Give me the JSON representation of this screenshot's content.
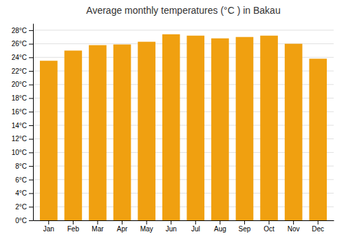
{
  "chart_data": {
    "type": "bar",
    "title": "Average monthly temperatures (°C ) in Bakau",
    "categories": [
      "Jan",
      "Feb",
      "Mar",
      "Apr",
      "May",
      "Jun",
      "Jul",
      "Aug",
      "Sep",
      "Oct",
      "Nov",
      "Dec"
    ],
    "values": [
      23.5,
      25.0,
      25.8,
      25.9,
      26.3,
      27.4,
      27.2,
      26.8,
      27.0,
      27.2,
      26.0,
      23.8
    ],
    "color": "#F0A010",
    "ylim": [
      0,
      29
    ],
    "yticks": [
      {
        "value": 0,
        "label": "0°C"
      },
      {
        "value": 2,
        "label": "2°C"
      },
      {
        "value": 4,
        "label": "4°C"
      },
      {
        "value": 6,
        "label": "6°C"
      },
      {
        "value": 8,
        "label": "8°C"
      },
      {
        "value": 10,
        "label": "10°C"
      },
      {
        "value": 12,
        "label": "12°C"
      },
      {
        "value": 14,
        "label": "14°C"
      },
      {
        "value": 16,
        "label": "16°C"
      },
      {
        "value": 18,
        "label": "18°C"
      },
      {
        "value": 20,
        "label": "20°C"
      },
      {
        "value": 22,
        "label": "22°C"
      },
      {
        "value": 24,
        "label": "24°C"
      },
      {
        "value": 26,
        "label": "26°C"
      },
      {
        "value": 28,
        "label": "28°C"
      }
    ],
    "grid": true
  }
}
